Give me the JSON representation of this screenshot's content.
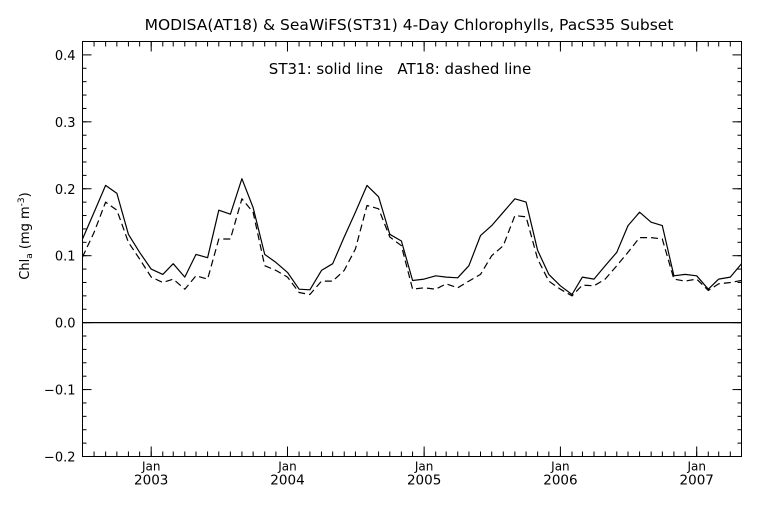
{
  "chart_data": {
    "type": "line",
    "title": "MODISA(AT18) & SeaWiFS(ST31) 4-Day Chlorophylls, PacS35 Subset",
    "annotation": "ST31: solid line   AT18: dashed line",
    "ylabel_main": "Chl",
    "ylabel_sub": "a",
    "ylabel_unit_pre": " (mg m",
    "ylabel_unit_sup": "-3",
    "ylabel_unit_post": ")",
    "ylim": [
      -0.2,
      0.42
    ],
    "yticks": [
      "0.4",
      "0.3",
      "0.2",
      "0.1",
      "0.0",
      "-0.1",
      "-0.2"
    ],
    "xlim": [
      "2002-07-01",
      "2007-05-01"
    ],
    "xticks": [
      {
        "month": "Jan",
        "year": "2003",
        "date": "2003-01-01"
      },
      {
        "month": "Jan",
        "year": "2004",
        "date": "2004-01-01"
      },
      {
        "month": "Jan",
        "year": "2005",
        "date": "2005-01-01"
      },
      {
        "month": "Jan",
        "year": "2006",
        "date": "2006-01-01"
      },
      {
        "month": "Jan",
        "year": "2007",
        "date": "2007-01-01"
      }
    ],
    "zero_line": 0.0,
    "grid": false,
    "series": [
      {
        "name": "ST31",
        "style": "solid",
        "color": "#000000",
        "points": [
          {
            "x": "2002-07-01",
            "y": 0.125
          },
          {
            "x": "2002-08-01",
            "y": 0.165
          },
          {
            "x": "2002-09-01",
            "y": 0.205
          },
          {
            "x": "2002-10-01",
            "y": 0.193
          },
          {
            "x": "2002-11-01",
            "y": 0.132
          },
          {
            "x": "2002-12-01",
            "y": 0.105
          },
          {
            "x": "2003-01-01",
            "y": 0.08
          },
          {
            "x": "2003-02-01",
            "y": 0.072
          },
          {
            "x": "2003-03-01",
            "y": 0.088
          },
          {
            "x": "2003-04-01",
            "y": 0.068
          },
          {
            "x": "2003-05-01",
            "y": 0.102
          },
          {
            "x": "2003-06-01",
            "y": 0.097
          },
          {
            "x": "2003-07-01",
            "y": 0.168
          },
          {
            "x": "2003-08-01",
            "y": 0.162
          },
          {
            "x": "2003-09-01",
            "y": 0.215
          },
          {
            "x": "2003-10-01",
            "y": 0.172
          },
          {
            "x": "2003-11-01",
            "y": 0.102
          },
          {
            "x": "2003-12-01",
            "y": 0.09
          },
          {
            "x": "2004-01-01",
            "y": 0.075
          },
          {
            "x": "2004-02-01",
            "y": 0.05
          },
          {
            "x": "2004-03-01",
            "y": 0.049
          },
          {
            "x": "2004-04-01",
            "y": 0.078
          },
          {
            "x": "2004-05-01",
            "y": 0.088
          },
          {
            "x": "2004-06-01",
            "y": 0.128
          },
          {
            "x": "2004-07-01",
            "y": 0.165
          },
          {
            "x": "2004-08-01",
            "y": 0.205
          },
          {
            "x": "2004-09-01",
            "y": 0.188
          },
          {
            "x": "2004-10-01",
            "y": 0.132
          },
          {
            "x": "2004-11-01",
            "y": 0.122
          },
          {
            "x": "2004-12-01",
            "y": 0.063
          },
          {
            "x": "2005-01-01",
            "y": 0.065
          },
          {
            "x": "2005-02-01",
            "y": 0.07
          },
          {
            "x": "2005-03-01",
            "y": 0.068
          },
          {
            "x": "2005-04-01",
            "y": 0.067
          },
          {
            "x": "2005-05-01",
            "y": 0.085
          },
          {
            "x": "2005-06-01",
            "y": 0.13
          },
          {
            "x": "2005-07-01",
            "y": 0.145
          },
          {
            "x": "2005-08-01",
            "y": 0.165
          },
          {
            "x": "2005-09-01",
            "y": 0.185
          },
          {
            "x": "2005-10-01",
            "y": 0.18
          },
          {
            "x": "2005-11-01",
            "y": 0.108
          },
          {
            "x": "2005-12-01",
            "y": 0.072
          },
          {
            "x": "2006-01-01",
            "y": 0.055
          },
          {
            "x": "2006-02-01",
            "y": 0.042
          },
          {
            "x": "2006-03-01",
            "y": 0.068
          },
          {
            "x": "2006-04-01",
            "y": 0.065
          },
          {
            "x": "2006-05-01",
            "y": 0.085
          },
          {
            "x": "2006-06-01",
            "y": 0.105
          },
          {
            "x": "2006-07-01",
            "y": 0.145
          },
          {
            "x": "2006-08-01",
            "y": 0.165
          },
          {
            "x": "2006-09-01",
            "y": 0.15
          },
          {
            "x": "2006-10-01",
            "y": 0.145
          },
          {
            "x": "2006-11-01",
            "y": 0.07
          },
          {
            "x": "2006-12-01",
            "y": 0.072
          },
          {
            "x": "2007-01-01",
            "y": 0.07
          },
          {
            "x": "2007-02-01",
            "y": 0.05
          },
          {
            "x": "2007-03-01",
            "y": 0.065
          },
          {
            "x": "2007-04-01",
            "y": 0.068
          },
          {
            "x": "2007-05-01",
            "y": 0.088
          }
        ]
      },
      {
        "name": "AT18",
        "style": "dashed",
        "color": "#000000",
        "points": [
          {
            "x": "2002-07-01",
            "y": 0.098
          },
          {
            "x": "2002-08-01",
            "y": 0.135
          },
          {
            "x": "2002-09-01",
            "y": 0.18
          },
          {
            "x": "2002-10-01",
            "y": 0.168
          },
          {
            "x": "2002-11-01",
            "y": 0.12
          },
          {
            "x": "2002-12-01",
            "y": 0.095
          },
          {
            "x": "2003-01-01",
            "y": 0.068
          },
          {
            "x": "2003-02-01",
            "y": 0.06
          },
          {
            "x": "2003-03-01",
            "y": 0.065
          },
          {
            "x": "2003-04-01",
            "y": 0.05
          },
          {
            "x": "2003-05-01",
            "y": 0.07
          },
          {
            "x": "2003-06-01",
            "y": 0.065
          },
          {
            "x": "2003-07-01",
            "y": 0.125
          },
          {
            "x": "2003-08-01",
            "y": 0.125
          },
          {
            "x": "2003-09-01",
            "y": 0.185
          },
          {
            "x": "2003-10-01",
            "y": 0.165
          },
          {
            "x": "2003-11-01",
            "y": 0.085
          },
          {
            "x": "2003-12-01",
            "y": 0.078
          },
          {
            "x": "2004-01-01",
            "y": 0.068
          },
          {
            "x": "2004-02-01",
            "y": 0.045
          },
          {
            "x": "2004-03-01",
            "y": 0.042
          },
          {
            "x": "2004-04-01",
            "y": 0.062
          },
          {
            "x": "2004-05-01",
            "y": 0.062
          },
          {
            "x": "2004-06-01",
            "y": 0.078
          },
          {
            "x": "2004-07-01",
            "y": 0.11
          },
          {
            "x": "2004-08-01",
            "y": 0.175
          },
          {
            "x": "2004-09-01",
            "y": 0.17
          },
          {
            "x": "2004-10-01",
            "y": 0.128
          },
          {
            "x": "2004-11-01",
            "y": 0.115
          },
          {
            "x": "2004-12-01",
            "y": 0.05
          },
          {
            "x": "2005-01-01",
            "y": 0.052
          },
          {
            "x": "2005-02-01",
            "y": 0.05
          },
          {
            "x": "2005-03-01",
            "y": 0.058
          },
          {
            "x": "2005-04-01",
            "y": 0.052
          },
          {
            "x": "2005-05-01",
            "y": 0.062
          },
          {
            "x": "2005-06-01",
            "y": 0.072
          },
          {
            "x": "2005-07-01",
            "y": 0.1
          },
          {
            "x": "2005-08-01",
            "y": 0.115
          },
          {
            "x": "2005-09-01",
            "y": 0.16
          },
          {
            "x": "2005-10-01",
            "y": 0.158
          },
          {
            "x": "2005-11-01",
            "y": 0.095
          },
          {
            "x": "2005-12-01",
            "y": 0.062
          },
          {
            "x": "2006-01-01",
            "y": 0.05
          },
          {
            "x": "2006-02-01",
            "y": 0.04
          },
          {
            "x": "2006-03-01",
            "y": 0.056
          },
          {
            "x": "2006-04-01",
            "y": 0.055
          },
          {
            "x": "2006-05-01",
            "y": 0.065
          },
          {
            "x": "2006-06-01",
            "y": 0.085
          },
          {
            "x": "2006-07-01",
            "y": 0.105
          },
          {
            "x": "2006-08-01",
            "y": 0.127
          },
          {
            "x": "2006-09-01",
            "y": 0.127
          },
          {
            "x": "2006-10-01",
            "y": 0.125
          },
          {
            "x": "2006-11-01",
            "y": 0.065
          },
          {
            "x": "2006-12-01",
            "y": 0.062
          },
          {
            "x": "2007-01-01",
            "y": 0.065
          },
          {
            "x": "2007-02-01",
            "y": 0.048
          },
          {
            "x": "2007-03-01",
            "y": 0.058
          },
          {
            "x": "2007-04-01",
            "y": 0.06
          },
          {
            "x": "2007-05-01",
            "y": 0.063
          }
        ]
      }
    ]
  }
}
